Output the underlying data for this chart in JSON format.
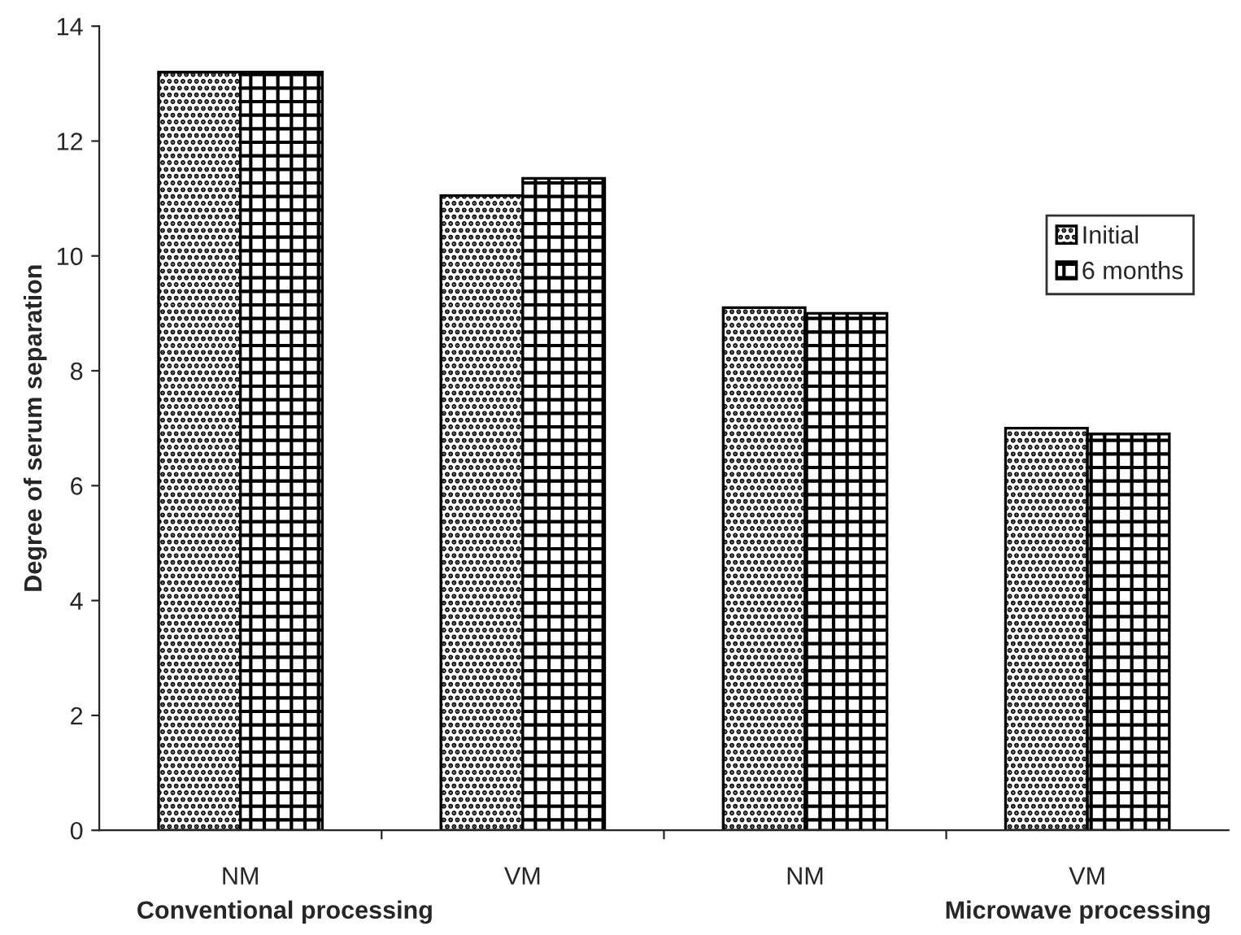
{
  "chart_data": {
    "type": "bar",
    "categories": [
      "NM",
      "VM",
      "NM",
      "VM"
    ],
    "series": [
      {
        "name": "Initial",
        "color": "#000000",
        "values": [
          13.2,
          11.05,
          9.1,
          7.0
        ]
      },
      {
        "name": "6 months",
        "color": "#000000",
        "values": [
          13.2,
          11.35,
          9.0,
          6.9
        ]
      }
    ],
    "ylabel": "Degree of serum separation",
    "ylim": [
      0,
      14
    ],
    "yticks": [
      0,
      2,
      4,
      6,
      8,
      10,
      12,
      14
    ],
    "annotations": [
      "Conventional processing",
      "Microwave processing"
    ],
    "grid": false,
    "legend": "right"
  }
}
